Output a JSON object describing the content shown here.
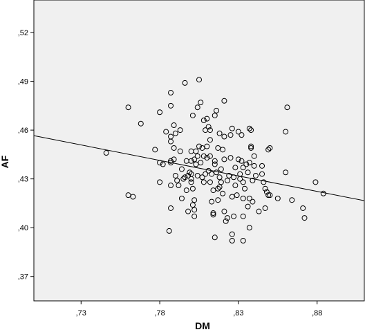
{
  "chart_data": {
    "type": "scatter",
    "title": "",
    "xlabel": "DM",
    "ylabel": "AF",
    "xlim": [
      0.7,
      0.91
    ],
    "ylim": [
      0.355,
      0.54
    ],
    "x_ticks": [
      0.73,
      0.78,
      0.83,
      0.88
    ],
    "x_tick_labels": [
      ",73",
      ",78",
      ",83",
      ",88"
    ],
    "y_ticks": [
      0.37,
      0.4,
      0.43,
      0.46,
      0.49,
      0.52
    ],
    "y_tick_labels": [
      ",37",
      ",40",
      ",43",
      ",46",
      ",49",
      ",52"
    ],
    "grid": false,
    "background_color": "#f0f0f0",
    "marker_color": "#000000",
    "fit_line": {
      "x": [
        0.7,
        0.91
      ],
      "y": [
        0.4566,
        0.4166
      ]
    },
    "points": [
      [
        0.746,
        0.446
      ],
      [
        0.76,
        0.474
      ],
      [
        0.768,
        0.464
      ],
      [
        0.76,
        0.42
      ],
      [
        0.763,
        0.419
      ],
      [
        0.777,
        0.448
      ],
      [
        0.78,
        0.471
      ],
      [
        0.78,
        0.44
      ],
      [
        0.78,
        0.428
      ],
      [
        0.782,
        0.439
      ],
      [
        0.784,
        0.459
      ],
      [
        0.786,
        0.398
      ],
      [
        0.787,
        0.483
      ],
      [
        0.787,
        0.475
      ],
      [
        0.787,
        0.456
      ],
      [
        0.787,
        0.453
      ],
      [
        0.787,
        0.441
      ],
      [
        0.787,
        0.44
      ],
      [
        0.787,
        0.426
      ],
      [
        0.787,
        0.412
      ],
      [
        0.789,
        0.463
      ],
      [
        0.789,
        0.449
      ],
      [
        0.789,
        0.442
      ],
      [
        0.79,
        0.458
      ],
      [
        0.79,
        0.432
      ],
      [
        0.791,
        0.429
      ],
      [
        0.792,
        0.426
      ],
      [
        0.793,
        0.46
      ],
      [
        0.793,
        0.447
      ],
      [
        0.794,
        0.418
      ],
      [
        0.794,
        0.436
      ],
      [
        0.795,
        0.43
      ],
      [
        0.796,
        0.489
      ],
      [
        0.796,
        0.431
      ],
      [
        0.797,
        0.441
      ],
      [
        0.797,
        0.423
      ],
      [
        0.798,
        0.41
      ],
      [
        0.798,
        0.432
      ],
      [
        0.799,
        0.434
      ],
      [
        0.8,
        0.447
      ],
      [
        0.8,
        0.441
      ],
      [
        0.8,
        0.433
      ],
      [
        0.8,
        0.43
      ],
      [
        0.8,
        0.428
      ],
      [
        0.801,
        0.469
      ],
      [
        0.801,
        0.424
      ],
      [
        0.801,
        0.414
      ],
      [
        0.802,
        0.417
      ],
      [
        0.802,
        0.411
      ],
      [
        0.802,
        0.407
      ],
      [
        0.802,
        0.442
      ],
      [
        0.803,
        0.447
      ],
      [
        0.803,
        0.439
      ],
      [
        0.804,
        0.474
      ],
      [
        0.804,
        0.444
      ],
      [
        0.804,
        0.432
      ],
      [
        0.805,
        0.491
      ],
      [
        0.805,
        0.45
      ],
      [
        0.806,
        0.477
      ],
      [
        0.806,
        0.44
      ],
      [
        0.807,
        0.449
      ],
      [
        0.807,
        0.431
      ],
      [
        0.808,
        0.466
      ],
      [
        0.808,
        0.444
      ],
      [
        0.808,
        0.428
      ],
      [
        0.809,
        0.46
      ],
      [
        0.809,
        0.433
      ],
      [
        0.81,
        0.467
      ],
      [
        0.81,
        0.45
      ],
      [
        0.81,
        0.443
      ],
      [
        0.811,
        0.462
      ],
      [
        0.811,
        0.435
      ],
      [
        0.812,
        0.46
      ],
      [
        0.812,
        0.454
      ],
      [
        0.812,
        0.444
      ],
      [
        0.812,
        0.428
      ],
      [
        0.813,
        0.416
      ],
      [
        0.813,
        0.433
      ],
      [
        0.814,
        0.423
      ],
      [
        0.814,
        0.409
      ],
      [
        0.814,
        0.408
      ],
      [
        0.815,
        0.469
      ],
      [
        0.815,
        0.441
      ],
      [
        0.815,
        0.439
      ],
      [
        0.815,
        0.394
      ],
      [
        0.816,
        0.472
      ],
      [
        0.816,
        0.434
      ],
      [
        0.817,
        0.449
      ],
      [
        0.817,
        0.424
      ],
      [
        0.817,
        0.417
      ],
      [
        0.818,
        0.458
      ],
      [
        0.818,
        0.431
      ],
      [
        0.818,
        0.425
      ],
      [
        0.819,
        0.436
      ],
      [
        0.819,
        0.428
      ],
      [
        0.82,
        0.448
      ],
      [
        0.82,
        0.421
      ],
      [
        0.821,
        0.478
      ],
      [
        0.821,
        0.456
      ],
      [
        0.821,
        0.442
      ],
      [
        0.821,
        0.41
      ],
      [
        0.822,
        0.404
      ],
      [
        0.823,
        0.406
      ],
      [
        0.823,
        0.429
      ],
      [
        0.824,
        0.432
      ],
      [
        0.825,
        0.457
      ],
      [
        0.825,
        0.443
      ],
      [
        0.826,
        0.461
      ],
      [
        0.826,
        0.419
      ],
      [
        0.826,
        0.396
      ],
      [
        0.826,
        0.392
      ],
      [
        0.827,
        0.431
      ],
      [
        0.827,
        0.407
      ],
      [
        0.828,
        0.437
      ],
      [
        0.828,
        0.426
      ],
      [
        0.829,
        0.42
      ],
      [
        0.83,
        0.459
      ],
      [
        0.83,
        0.442
      ],
      [
        0.831,
        0.433
      ],
      [
        0.831,
        0.43
      ],
      [
        0.832,
        0.457
      ],
      [
        0.832,
        0.441
      ],
      [
        0.833,
        0.437
      ],
      [
        0.833,
        0.428
      ],
      [
        0.833,
        0.418
      ],
      [
        0.833,
        0.407
      ],
      [
        0.833,
        0.392
      ],
      [
        0.834,
        0.424
      ],
      [
        0.835,
        0.439
      ],
      [
        0.836,
        0.434
      ],
      [
        0.836,
        0.413
      ],
      [
        0.837,
        0.461
      ],
      [
        0.837,
        0.44
      ],
      [
        0.837,
        0.418
      ],
      [
        0.837,
        0.4
      ],
      [
        0.838,
        0.46
      ],
      [
        0.838,
        0.45
      ],
      [
        0.838,
        0.449
      ],
      [
        0.839,
        0.429
      ],
      [
        0.839,
        0.416
      ],
      [
        0.84,
        0.438
      ],
      [
        0.84,
        0.444
      ],
      [
        0.841,
        0.432
      ],
      [
        0.843,
        0.41
      ],
      [
        0.845,
        0.438
      ],
      [
        0.845,
        0.433
      ],
      [
        0.846,
        0.428
      ],
      [
        0.847,
        0.424
      ],
      [
        0.847,
        0.412
      ],
      [
        0.848,
        0.422
      ],
      [
        0.849,
        0.448
      ],
      [
        0.849,
        0.42
      ],
      [
        0.85,
        0.449
      ],
      [
        0.85,
        0.42
      ],
      [
        0.855,
        0.418
      ],
      [
        0.86,
        0.459
      ],
      [
        0.86,
        0.434
      ],
      [
        0.861,
        0.474
      ],
      [
        0.864,
        0.417
      ],
      [
        0.871,
        0.412
      ],
      [
        0.872,
        0.406
      ],
      [
        0.879,
        0.428
      ],
      [
        0.884,
        0.421
      ]
    ]
  }
}
